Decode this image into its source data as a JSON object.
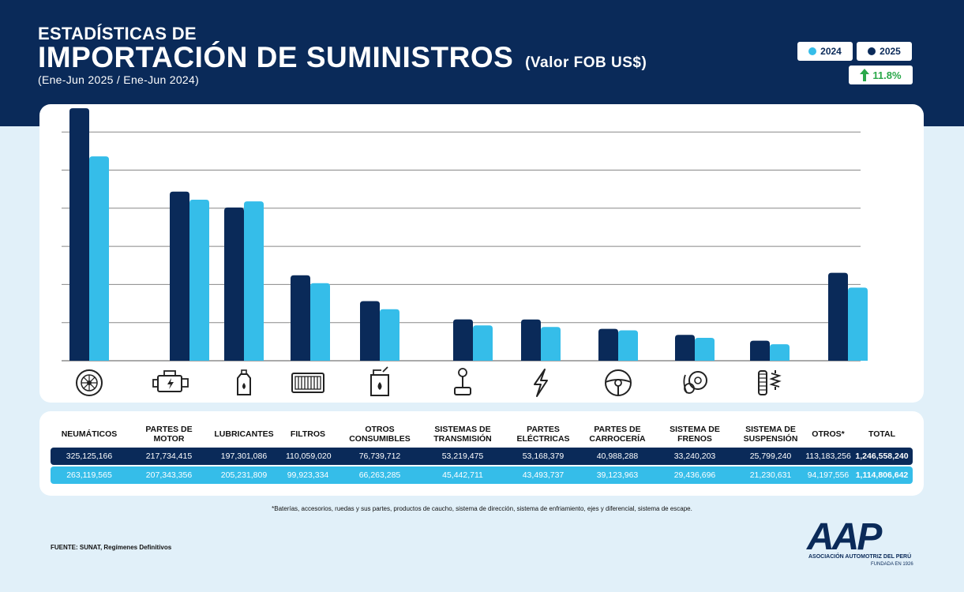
{
  "header": {
    "title_line1": "ESTADÍSTICAS DE",
    "title_line2": "IMPORTACIÓN DE SUMINISTROS",
    "title_unit": "(Valor FOB US$)",
    "period": "(Ene-Jun 2025 / Ene-Jun 2024)"
  },
  "legend": {
    "items": [
      {
        "label": "2024",
        "color": "#35bde9"
      },
      {
        "label": "2025",
        "color": "#0a2a59"
      }
    ]
  },
  "growth": {
    "value": "11.8%",
    "icon": "arrow-up-icon",
    "color": "#2aa84a"
  },
  "colors": {
    "dark": "#0a2a59",
    "light": "#35bde9",
    "background": "#e1f0f9"
  },
  "chart_data": {
    "type": "bar",
    "categories": [
      "NEUMÁTICOS",
      "PARTES DE MOTOR",
      "LUBRICANTES",
      "FILTROS",
      "OTROS CONSUMIBLES",
      "SISTEMAS DE TRANSMISIÓN",
      "PARTES ELÉCTRICAS",
      "PARTES DE CARROCERÍA",
      "SISTEMA DE FRENOS",
      "SISTEMA DE SUSPENSIÓN",
      "OTROS*"
    ],
    "series": [
      {
        "name": "2025",
        "color": "#0a2a59",
        "values": [
          325125166,
          217734415,
          197301086,
          110059020,
          76739712,
          53219475,
          53168379,
          40988288,
          33240203,
          25799240,
          113183256
        ]
      },
      {
        "name": "2024",
        "color": "#35bde9",
        "values": [
          263119565,
          207343356,
          205231809,
          99923334,
          66263285,
          45442711,
          43493737,
          39123963,
          29436696,
          21230631,
          94197556
        ]
      }
    ],
    "ylim": [
      0,
      310000000
    ],
    "grid": true,
    "icons": [
      "tire-icon",
      "engine-icon",
      "oil-bottle-icon",
      "filter-icon",
      "jerrycan-icon",
      "gear-shift-icon",
      "lightning-icon",
      "steering-wheel-icon",
      "brake-icon",
      "suspension-icon"
    ]
  },
  "table": {
    "headers": [
      "NEUMÁTICOS",
      "PARTES DE\nMOTOR",
      "LUBRICANTES",
      "FILTROS",
      "OTROS\nCONSUMIBLES",
      "SISTEMAS DE\nTRANSMISIÓN",
      "PARTES\nELÉCTRICAS",
      "PARTES DE\nCARROCERÍA",
      "SISTEMA DE\nFRENOS",
      "SISTEMA DE\nSUSPENSIÓN",
      "OTROS*",
      "TOTAL"
    ],
    "row_2025": [
      "325,125,166",
      "217,734,415",
      "197,301,086",
      "110,059,020",
      "76,739,712",
      "53,219,475",
      "53,168,379",
      "40,988,288",
      "33,240,203",
      "25,799,240",
      "113,183,256",
      "1,246,558,240"
    ],
    "row_2024": [
      "263,119,565",
      "207,343,356",
      "205,231,809",
      "99,923,334",
      "66,263,285",
      "45,442,711",
      "43,493,737",
      "39,123,963",
      "29,436,696",
      "21,230,631",
      "94,197,556",
      "1,114,806,642"
    ]
  },
  "footnote": "*Baterías, accesorios, ruedas y sus partes, productos de caucho, sistema de dirección, sistema de enfriamiento, ejes y diferencial, sistema de escape.",
  "source": "FUENTE: SUNAT, Regímenes Definitivos",
  "logo": {
    "mark": "AAP",
    "org": "ASOCIACIÓN AUTOMOTRIZ DEL PERÚ",
    "since": "FUNDADA EN 1926"
  }
}
